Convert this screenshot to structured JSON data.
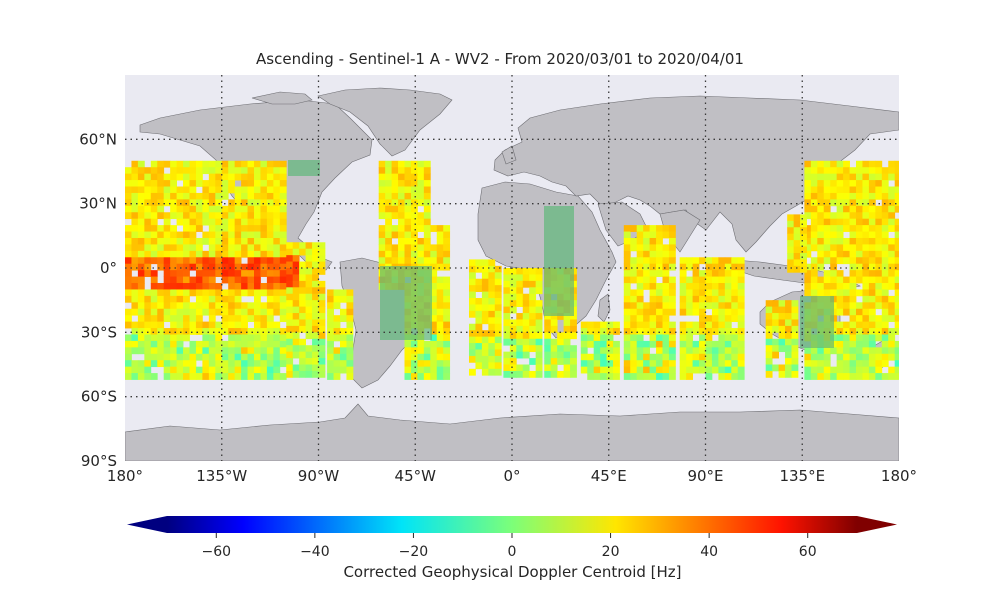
{
  "map": {
    "title": "Ascending - Sentinel-1 A - WV2 - From 2020/03/01 to 2020/04/01",
    "extent": {
      "lon": [
        -180,
        180
      ],
      "lat": [
        -90,
        90
      ]
    },
    "lon_ticks": [
      {
        "value": -180,
        "label": "180°"
      },
      {
        "value": -135,
        "label": "135°W"
      },
      {
        "value": -90,
        "label": "90°W"
      },
      {
        "value": -45,
        "label": "45°W"
      },
      {
        "value": 0,
        "label": "0°"
      },
      {
        "value": 45,
        "label": "45°E"
      },
      {
        "value": 90,
        "label": "90°E"
      },
      {
        "value": 135,
        "label": "135°E"
      },
      {
        "value": 180,
        "label": "180°"
      }
    ],
    "lat_ticks": [
      {
        "value": 60,
        "label": "60°N"
      },
      {
        "value": 30,
        "label": "30°N"
      },
      {
        "value": 0,
        "label": "0°"
      },
      {
        "value": -30,
        "label": "30°S"
      },
      {
        "value": -60,
        "label": "60°S"
      },
      {
        "value": -90,
        "label": "90°S"
      }
    ],
    "grid": "dotted",
    "data_coverage_lat": [
      -50,
      50
    ],
    "colors": {
      "ocean": "#eaeaf2",
      "land": "#c0bfc4",
      "coast": "#6e6e73"
    }
  },
  "colorbar": {
    "label": "Corrected Geophysical Doppler Centroid [Hz]",
    "range": [
      -70,
      70
    ],
    "ticks": [
      {
        "value": -60,
        "label": "−60"
      },
      {
        "value": -40,
        "label": "−40"
      },
      {
        "value": -20,
        "label": "−20"
      },
      {
        "value": 0,
        "label": "0"
      },
      {
        "value": 20,
        "label": "20"
      },
      {
        "value": 40,
        "label": "40"
      },
      {
        "value": 60,
        "label": "60"
      }
    ],
    "colormap": "jet",
    "extend": "both"
  }
}
